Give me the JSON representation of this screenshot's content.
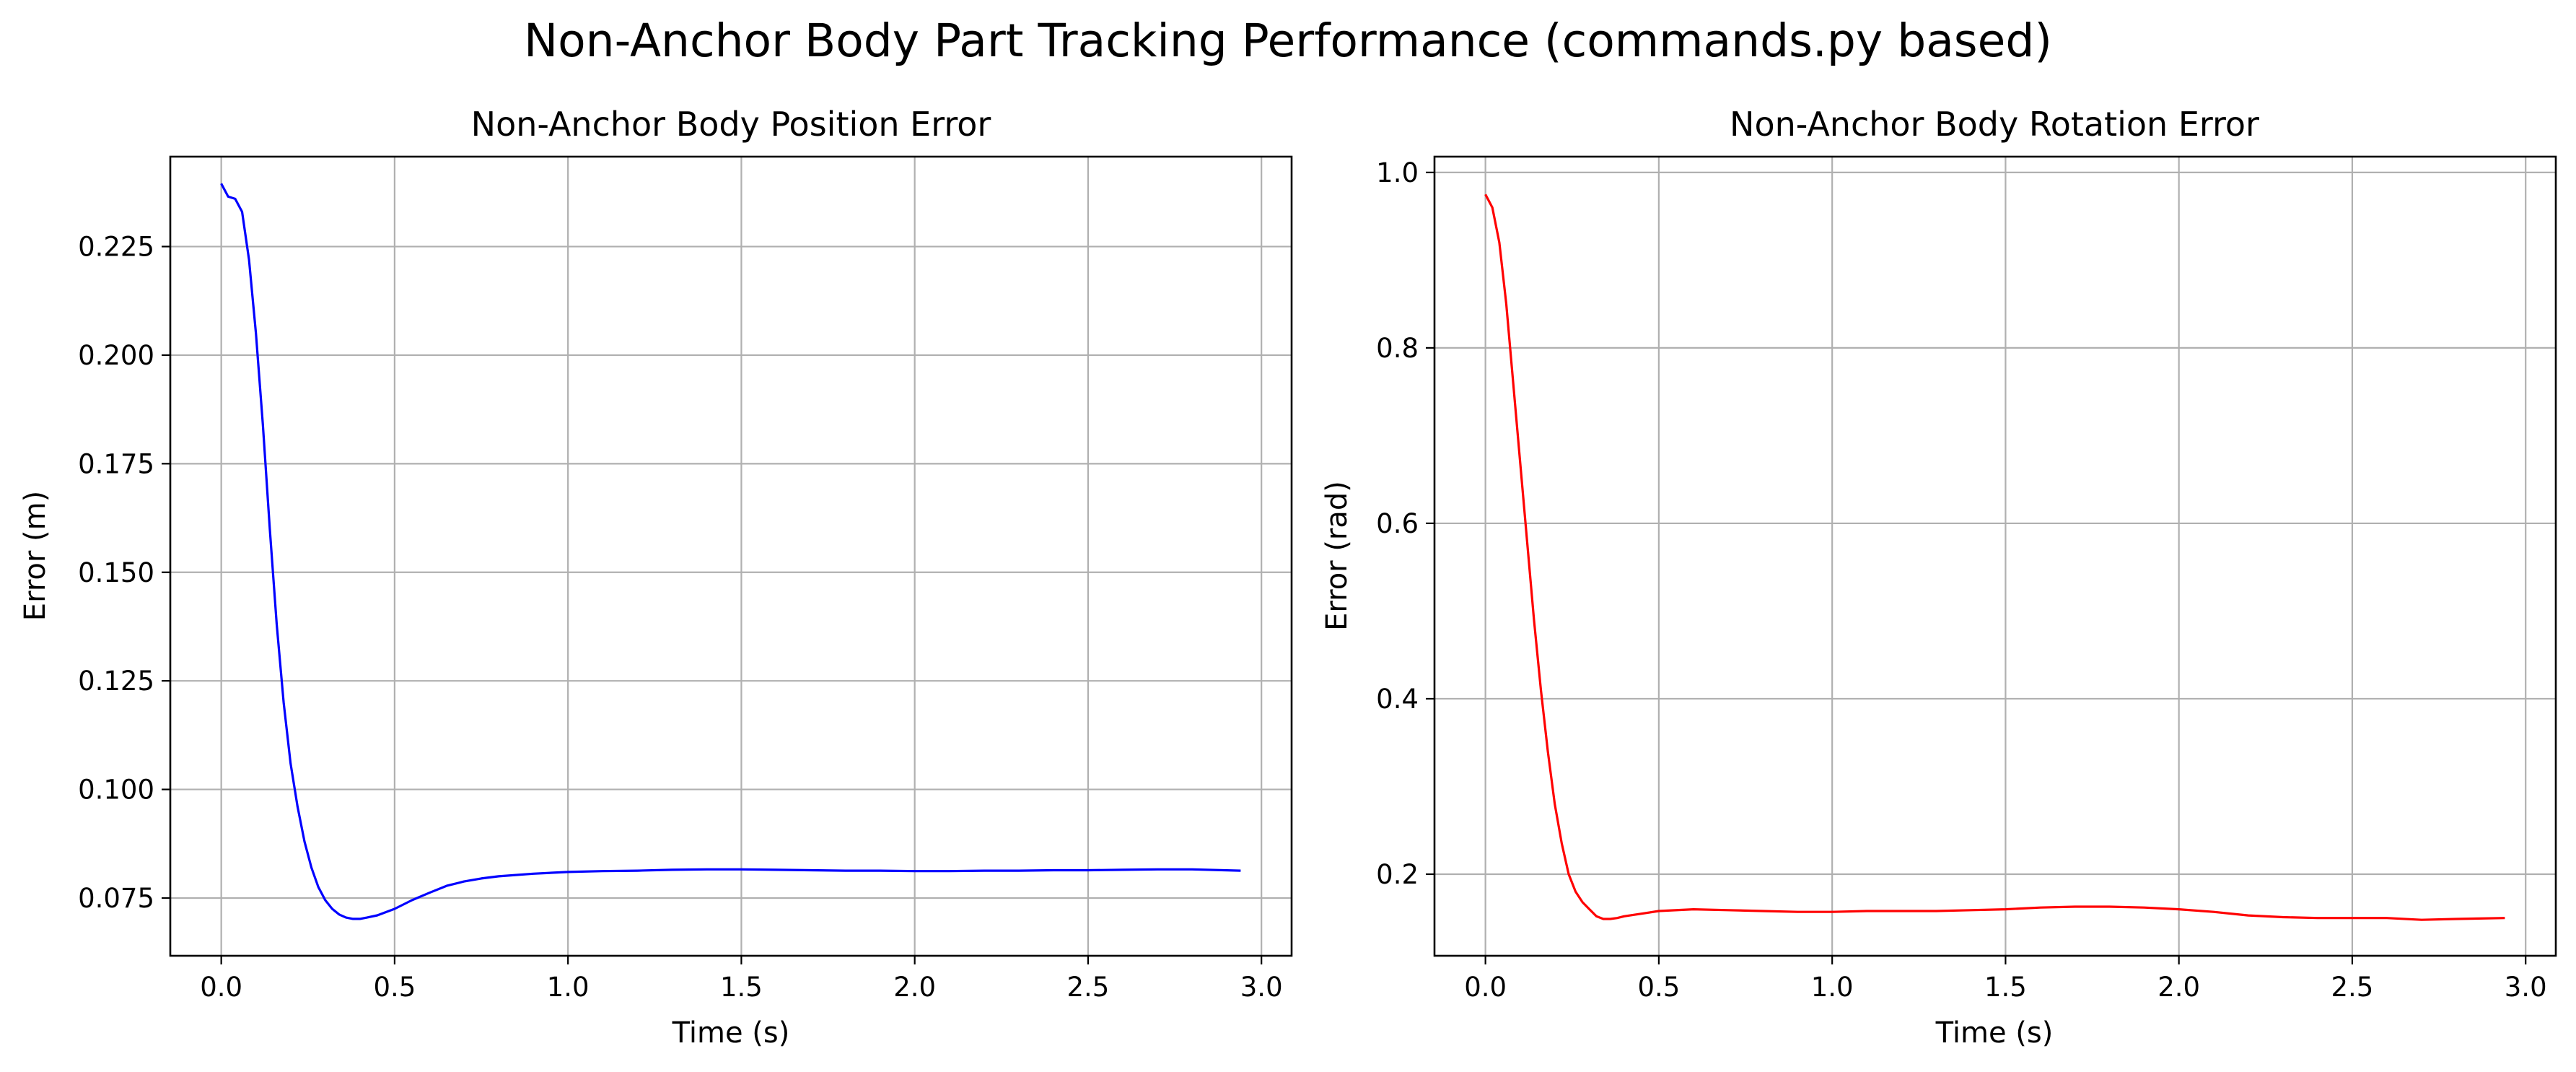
{
  "figure": {
    "title": "Non-Anchor Body Part Tracking Performance (commands.py based)"
  },
  "chart_data": [
    {
      "type": "line",
      "title": "Non-Anchor Body Position Error",
      "xlabel": "Time (s)",
      "ylabel": "Error (m)",
      "xlim": [
        -0.147,
        3.087
      ],
      "ylim": [
        0.0617,
        0.2457
      ],
      "xticks": [
        0.0,
        0.5,
        1.0,
        1.5,
        2.0,
        2.5,
        3.0
      ],
      "xtick_labels": [
        "0.0",
        "0.5",
        "1.0",
        "1.5",
        "2.0",
        "2.5",
        "3.0"
      ],
      "yticks": [
        0.075,
        0.1,
        0.125,
        0.15,
        0.175,
        0.2,
        0.225
      ],
      "ytick_labels": [
        "0.075",
        "0.100",
        "0.125",
        "0.150",
        "0.175",
        "0.200",
        "0.225"
      ],
      "grid": true,
      "series": [
        {
          "color": "#0000ff",
          "x": [
            0.0,
            0.02,
            0.04,
            0.06,
            0.08,
            0.1,
            0.12,
            0.14,
            0.16,
            0.18,
            0.2,
            0.22,
            0.24,
            0.26,
            0.28,
            0.3,
            0.32,
            0.34,
            0.36,
            0.38,
            0.4,
            0.42,
            0.45,
            0.5,
            0.55,
            0.6,
            0.65,
            0.7,
            0.75,
            0.8,
            0.9,
            1.0,
            1.1,
            1.2,
            1.3,
            1.4,
            1.5,
            1.6,
            1.7,
            1.8,
            1.9,
            2.0,
            2.1,
            2.2,
            2.3,
            2.4,
            2.5,
            2.6,
            2.7,
            2.8,
            2.94
          ],
          "values": [
            0.2395,
            0.2365,
            0.236,
            0.233,
            0.222,
            0.205,
            0.184,
            0.16,
            0.138,
            0.12,
            0.106,
            0.096,
            0.088,
            0.082,
            0.0775,
            0.0745,
            0.0725,
            0.0712,
            0.0705,
            0.0702,
            0.0702,
            0.0705,
            0.071,
            0.0725,
            0.0745,
            0.0762,
            0.0778,
            0.0788,
            0.0795,
            0.08,
            0.0806,
            0.081,
            0.0812,
            0.0813,
            0.0815,
            0.0816,
            0.0816,
            0.0815,
            0.0814,
            0.0813,
            0.0813,
            0.0812,
            0.0812,
            0.0813,
            0.0813,
            0.0814,
            0.0814,
            0.0815,
            0.0816,
            0.0816,
            0.0813
          ]
        }
      ]
    },
    {
      "type": "line",
      "title": "Non-Anchor Body Rotation Error",
      "xlabel": "Time (s)",
      "ylabel": "Error (rad)",
      "xlim": [
        -0.147,
        3.087
      ],
      "ylim": [
        0.107,
        1.018
      ],
      "xticks": [
        0.0,
        0.5,
        1.0,
        1.5,
        2.0,
        2.5,
        3.0
      ],
      "xtick_labels": [
        "0.0",
        "0.5",
        "1.0",
        "1.5",
        "2.0",
        "2.5",
        "3.0"
      ],
      "yticks": [
        0.2,
        0.4,
        0.6,
        0.8,
        1.0
      ],
      "ytick_labels": [
        "0.2",
        "0.4",
        "0.6",
        "0.8",
        "1.0"
      ],
      "grid": true,
      "series": [
        {
          "color": "#ff0000",
          "x": [
            0.0,
            0.02,
            0.04,
            0.06,
            0.08,
            0.1,
            0.12,
            0.14,
            0.16,
            0.18,
            0.2,
            0.22,
            0.24,
            0.26,
            0.28,
            0.3,
            0.32,
            0.34,
            0.36,
            0.38,
            0.4,
            0.45,
            0.5,
            0.6,
            0.7,
            0.8,
            0.9,
            1.0,
            1.1,
            1.2,
            1.3,
            1.4,
            1.5,
            1.6,
            1.7,
            1.8,
            1.9,
            2.0,
            2.1,
            2.2,
            2.3,
            2.4,
            2.5,
            2.6,
            2.7,
            2.8,
            2.94
          ],
          "values": [
            0.975,
            0.96,
            0.92,
            0.85,
            0.76,
            0.67,
            0.58,
            0.49,
            0.41,
            0.34,
            0.28,
            0.235,
            0.2,
            0.18,
            0.168,
            0.16,
            0.152,
            0.149,
            0.149,
            0.15,
            0.152,
            0.155,
            0.158,
            0.16,
            0.159,
            0.158,
            0.157,
            0.157,
            0.158,
            0.158,
            0.158,
            0.159,
            0.16,
            0.162,
            0.163,
            0.163,
            0.162,
            0.16,
            0.157,
            0.153,
            0.151,
            0.15,
            0.15,
            0.15,
            0.148,
            0.149,
            0.15
          ]
        }
      ]
    }
  ]
}
